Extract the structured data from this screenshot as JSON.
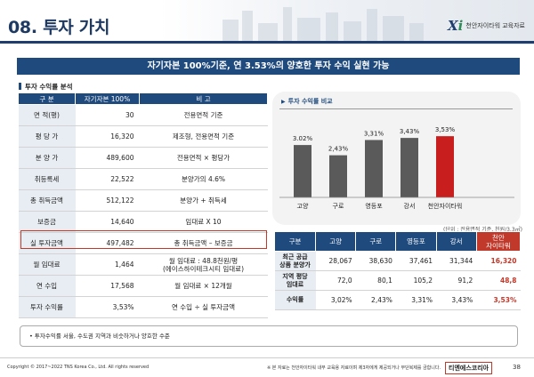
{
  "header": {
    "section_number": "08.",
    "section_title": "투자 가치",
    "logo_mark": "X",
    "logo_mark_accent": "i",
    "logo_text": "천안자이타워 교육자료"
  },
  "banner": "자기자본 100%기준, 연 3.53%의 양호한 투자 수익 실현 가능",
  "analysis_label": "투자 수익률 분석",
  "left_table": {
    "headers": [
      "구 분",
      "자기자본 100%",
      "비 고"
    ],
    "rows": [
      {
        "item": "면 적(평)",
        "value": "30",
        "note": "전용면적 기준"
      },
      {
        "item": "평 당 가",
        "value": "16,320",
        "note": "제조형, 전용면적 기준"
      },
      {
        "item": "분 양 가",
        "value": "489,600",
        "note": "전용면적 × 평당가"
      },
      {
        "item": "취등록세",
        "value": "22,522",
        "note": "분양가의 4.6%"
      },
      {
        "item": "총 취득금액",
        "value": "512,122",
        "note": "분양가 + 취득세"
      },
      {
        "item": "보증금",
        "value": "14,640",
        "note": "임대료 X 10"
      },
      {
        "item": "실 투자금액",
        "value": "497,482",
        "note": "총 취득금액 – 보증금"
      },
      {
        "item": "월 임대료",
        "value": "1,464",
        "note": "월 임대료 : 48.8천원/평",
        "note2": "(에이스하이테크시티 임대료)"
      },
      {
        "item": "연 수입",
        "value": "17,568",
        "note": "월 임대료 × 12개월"
      },
      {
        "item": "투자 수익률",
        "value": "3,53%",
        "note": "연 수입 ÷ 실 투자금액"
      }
    ]
  },
  "chart_title": "투자 수익률 비교",
  "chart_data": {
    "type": "bar",
    "title": "투자 수익률 비교",
    "categories": [
      "고양",
      "구로",
      "영등포",
      "강서",
      "천안자이타워"
    ],
    "values": [
      3.02,
      2.43,
      3.31,
      3.43,
      3.53
    ],
    "labels": [
      "3.02%",
      "2,43%",
      "3,31%",
      "3,43%",
      "3,53%"
    ],
    "highlight_index": 4,
    "ylim": [
      0,
      4
    ],
    "xlabel": "",
    "ylabel": ""
  },
  "unit_note": "(단위 : 전용면적 기준, 천원/3.3㎡)",
  "right_table": {
    "headers": [
      "구분",
      "고양",
      "구로",
      "영등포",
      "강서",
      "천안",
      "자이타워"
    ],
    "rows": [
      {
        "label1": "최근 공급",
        "label2": "상품 분양가",
        "values": [
          "28,067",
          "38,630",
          "37,461",
          "31,344",
          "16,320"
        ]
      },
      {
        "label1": "지역 평당",
        "label2": "임대료",
        "values": [
          "72,0",
          "80,1",
          "105,2",
          "91,2",
          "48,8"
        ]
      },
      {
        "label1": "수익률",
        "label2": "",
        "values": [
          "3,02%",
          "2,43%",
          "3,31%",
          "3,43%",
          "3,53%"
        ]
      }
    ]
  },
  "summary": "• 투자수익률 서울, 수도권 지역과 비슷하거나 양호한 수준",
  "footer": {
    "copyright": "Copyright © 2017~2022 TNS Korea Co., Ltd.  All rights reserved",
    "notice": "※ 본 자료는 천안자이타워 내부 교육용 자료이며 제3자에게 제공되거나 무단복제를 금합니다.",
    "brand": "티엔에스코리아",
    "page": "38"
  },
  "colors": {
    "navy": "#1f4a7d",
    "bar": "#5a5a5a",
    "bar_highlight": "#c81e1e",
    "accent_red": "#c0392b"
  }
}
